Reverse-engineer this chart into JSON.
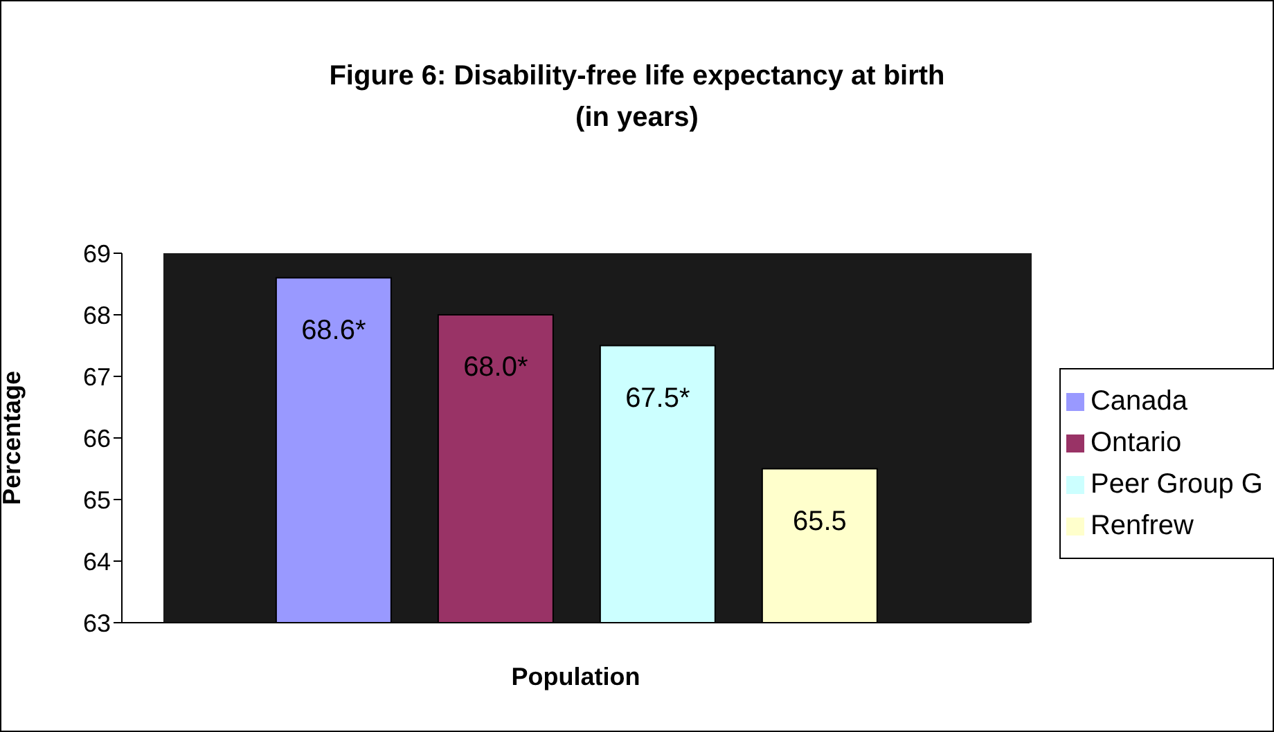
{
  "chart_data": {
    "type": "bar",
    "title": "Figure 6: Disability-free life expectancy at birth\n(in years)",
    "xlabel": "Population",
    "ylabel": "Percentage",
    "categories": [
      null
    ],
    "series": [
      {
        "name": "Canada",
        "color": "#9999ff",
        "values": [
          68.6
        ],
        "value_labels": [
          "68.6*"
        ]
      },
      {
        "name": "Ontario",
        "color": "#993366",
        "values": [
          68.0
        ],
        "value_labels": [
          "68.0*"
        ]
      },
      {
        "name": "Peer Group G",
        "color": "#ccffff",
        "values": [
          67.5
        ],
        "value_labels": [
          "67.5*"
        ]
      },
      {
        "name": "Renfrew",
        "color": "#ffffcc",
        "values": [
          65.5
        ],
        "value_labels": [
          "65.5"
        ]
      }
    ],
    "ylim": [
      63,
      69
    ],
    "yticks": [
      63,
      64,
      65,
      66,
      67,
      68,
      69
    ],
    "legend": "right"
  }
}
